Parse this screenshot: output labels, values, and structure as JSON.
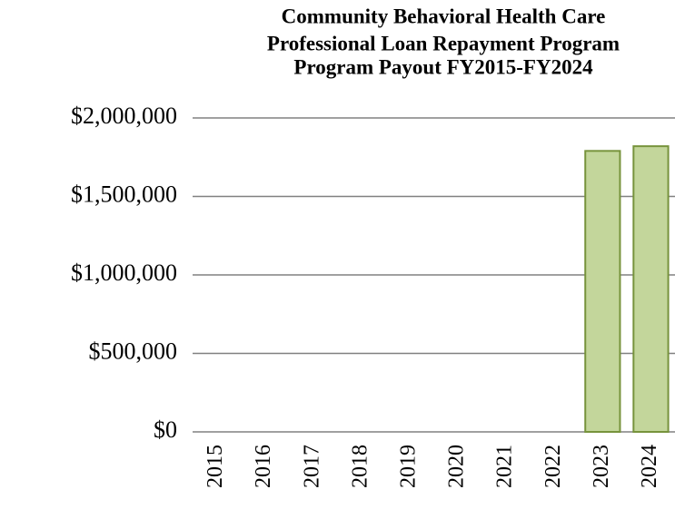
{
  "chart_data": {
    "type": "bar",
    "title": [
      "Community Behavioral Health Care",
      "Professional Loan Repayment Program",
      "Program Payout FY2015-FY2024"
    ],
    "categories": [
      "2015",
      "2016",
      "2017",
      "2018",
      "2019",
      "2020",
      "2021",
      "2022",
      "2023",
      "2024"
    ],
    "values": [
      0,
      0,
      0,
      0,
      0,
      0,
      0,
      0,
      1790000,
      1820000
    ],
    "color": "#c3d69b",
    "ylim": [
      0,
      2000000
    ],
    "yticks": [
      {
        "value": 0,
        "label": "$0"
      },
      {
        "value": 500000,
        "label": "$500,000"
      },
      {
        "value": 1000000,
        "label": "$1,000,000"
      },
      {
        "value": 1500000,
        "label": "$1,500,000"
      },
      {
        "value": 2000000,
        "label": "$2,000,000"
      }
    ],
    "grid": true
  }
}
